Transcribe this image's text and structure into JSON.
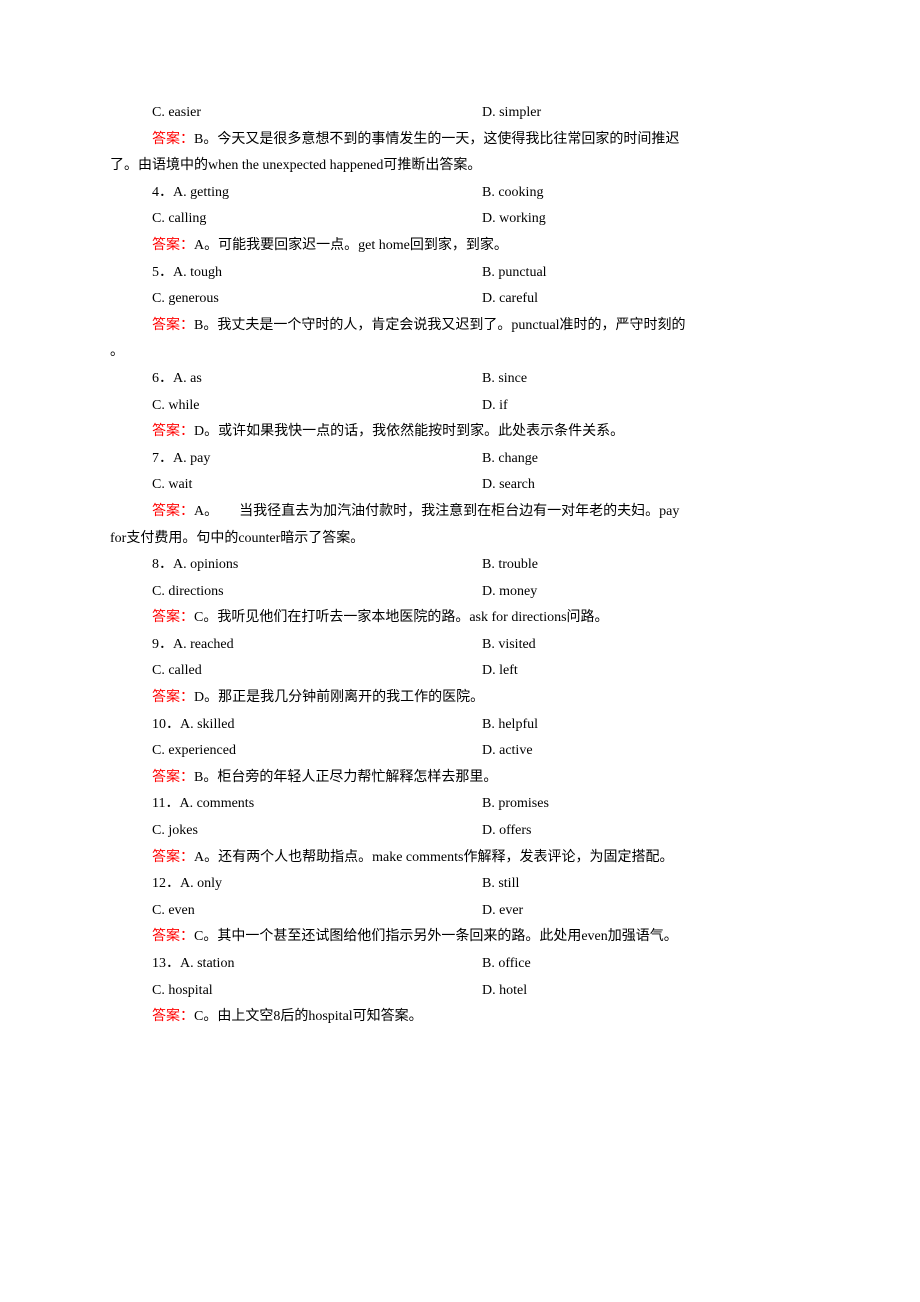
{
  "answer_label": "答案：",
  "items": [
    {
      "optC": "C. easier",
      "optD": "D. simpler",
      "answer": "B。今天又是很多意想不到的事情发生的一天，这使得我比往常回家的时间推迟了。由语境中的when the unexpected happened可推断出答案。",
      "hasWrap": true,
      "wrapAfter": "B。今天又是很多意想不到的事情发生的一天，这使得我比往常回家的时间推迟",
      "wrapTail": "了。由语境中的when the unexpected happened可推断出答案。"
    },
    {
      "num": "4．",
      "optA": "A. getting",
      "optB": "B. cooking",
      "optC": "C. calling",
      "optD": "D. working",
      "answer": "A。可能我要回家迟一点。get home回到家，到家。"
    },
    {
      "num": "5．",
      "optA": "A. tough",
      "optB": "B. punctual",
      "optC": "C. generous",
      "optD": "D. careful",
      "answer": "B。我丈夫是一个守时的人，肯定会说我又迟到了。punctual准时的，严守时刻的",
      "hasWrap": true,
      "wrapTail": "。"
    },
    {
      "num": "6．",
      "optA": "A. as",
      "optB": "B. since",
      "optC": "C. while",
      "optD": "D. if",
      "answer": "D。或许如果我快一点的话，我依然能按时到家。此处表示条件关系。"
    },
    {
      "num": "7．",
      "optA": "A. pay",
      "optB": "B. change",
      "optC": "C. wait",
      "optD": "D. search",
      "answer": "A。　　当我径直去为加汽油付款时，我注意到在柜台边有一对年老的夫妇。pay",
      "hasWrap": true,
      "wrapTail": "for支付费用。句中的counter暗示了答案。"
    },
    {
      "num": "8．",
      "optA": "A. opinions",
      "optB": "B. trouble",
      "optC": "C. directions",
      "optD": "D. money",
      "answer": "C。我听见他们在打听去一家本地医院的路。ask for directions问路。"
    },
    {
      "num": "9．",
      "optA": "A. reached",
      "optB": "B. visited",
      "optC": "C. called",
      "optD": "D. left",
      "answer": "D。那正是我几分钟前刚离开的我工作的医院。"
    },
    {
      "num": "10．",
      "optA": "A. skilled",
      "optB": "B. helpful",
      "optC": "C. experienced",
      "optD": "D. active",
      "answer": "B。柜台旁的年轻人正尽力帮忙解释怎样去那里。"
    },
    {
      "num": "11．",
      "optA": "A. comments",
      "optB": "B. promises",
      "optC": "C. jokes",
      "optD": "D. offers",
      "answer": "A。还有两个人也帮助指点。make comments作解释，发表评论，为固定搭配。"
    },
    {
      "num": "12．",
      "optA": "A. only",
      "optB": "B. still",
      "optC": "C. even",
      "optD": "D. ever",
      "answer": "C。其中一个甚至还试图给他们指示另外一条回来的路。此处用even加强语气。"
    },
    {
      "num": "13．",
      "optA": "A. station",
      "optB": "B. office",
      "optC": "C. hospital",
      "optD": "D. hotel",
      "answer": "C。由上文空8后的hospital可知答案。"
    }
  ]
}
